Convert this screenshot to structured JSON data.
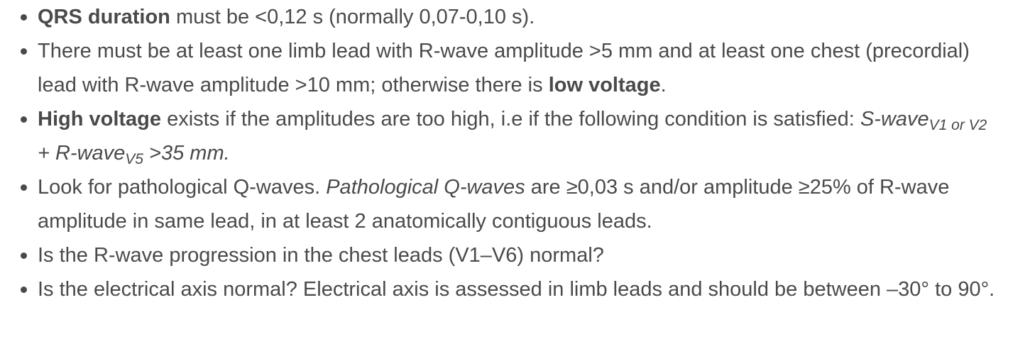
{
  "items": [
    {
      "b1": "QRS duration",
      "t1": " must be <0,12 s (normally 0,07-0,10 s)."
    },
    {
      "t1": "There must be at least one limb lead with R-wave amplitude >5 mm and at least one chest (precordial) lead with R-wave amplitude >10 mm; otherwise there is ",
      "b1": "low voltage",
      "t2": "."
    },
    {
      "b1": "High voltage",
      "t1": " exists if the amplitudes are too high, i.e if the following condition is satisfied: ",
      "i1": "S-wave",
      "sub1": "V1 or V2",
      "i2": " + R-wave",
      "sub2": "V5",
      "i3": " >35 mm."
    },
    {
      "t1": "Look for pathological Q-waves. ",
      "i1": "Pathological Q-waves",
      "t2": " are ≥0,03 s and/or amplitude ≥25% of R-wave amplitude in same lead, in at least 2 anatomically contiguous leads."
    },
    {
      "t1": "Is the R-wave progression in the chest leads (V1–V6) normal?"
    },
    {
      "t1": "Is the electrical axis normal? Electrical axis is assessed in limb leads and should be between –30° to 90°."
    }
  ]
}
